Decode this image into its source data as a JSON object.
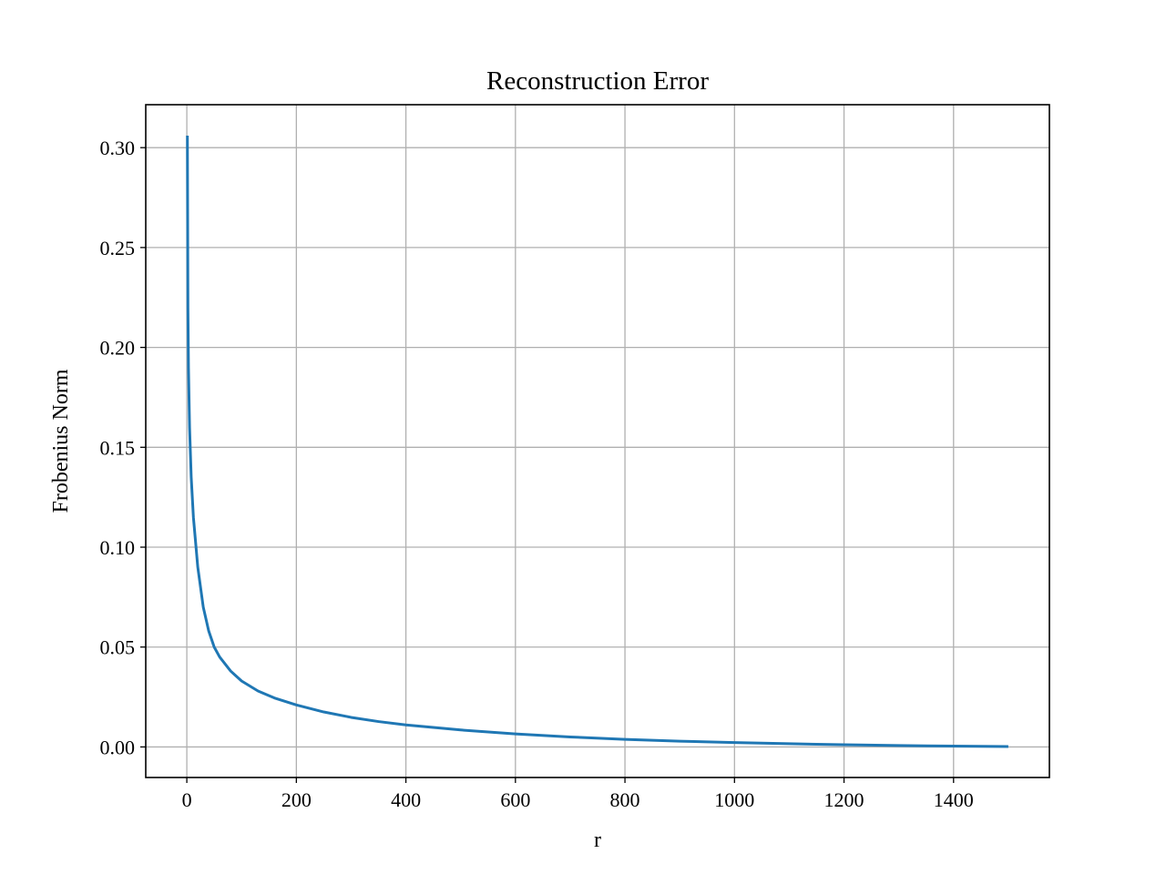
{
  "chart_data": {
    "type": "line",
    "title": "Reconstruction Error",
    "xlabel": "r",
    "ylabel": "Frobenius Norm",
    "xlim": [
      -75,
      1575
    ],
    "ylim": [
      -0.0153,
      0.3215
    ],
    "xticks": [
      0,
      200,
      400,
      600,
      800,
      1000,
      1200,
      1400
    ],
    "xtick_labels": [
      "0",
      "200",
      "400",
      "600",
      "800",
      "1000",
      "1200",
      "1400"
    ],
    "yticks": [
      0.0,
      0.05,
      0.1,
      0.15,
      0.2,
      0.25,
      0.3
    ],
    "ytick_labels": [
      "0.00",
      "0.05",
      "0.10",
      "0.15",
      "0.20",
      "0.25",
      "0.30"
    ],
    "grid": true,
    "legend": "none",
    "series": [
      {
        "color": "#1f77b4",
        "x": [
          1,
          2,
          3,
          5,
          8,
          12,
          20,
          30,
          40,
          50,
          60,
          80,
          100,
          130,
          160,
          200,
          250,
          300,
          350,
          400,
          500,
          600,
          700,
          800,
          900,
          1000,
          1100,
          1200,
          1300,
          1400,
          1500
        ],
        "y": [
          0.306,
          0.22,
          0.19,
          0.16,
          0.135,
          0.115,
          0.09,
          0.07,
          0.058,
          0.05,
          0.045,
          0.038,
          0.033,
          0.028,
          0.0245,
          0.021,
          0.0175,
          0.0148,
          0.0127,
          0.011,
          0.0085,
          0.0065,
          0.005,
          0.0038,
          0.0029,
          0.0022,
          0.0016,
          0.0011,
          0.0007,
          0.0004,
          0.0002
        ]
      }
    ]
  },
  "colors": {
    "axes": "#000000",
    "grid": "#b0b0b0",
    "background": "#ffffff"
  }
}
